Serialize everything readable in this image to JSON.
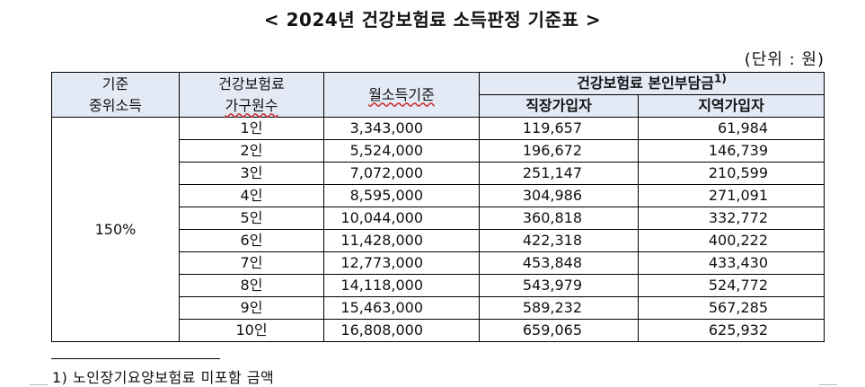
{
  "title": "< 2024년 건강보험료 소득판정 기준표 >",
  "unit": "(단위 : 원)",
  "headers": {
    "median_income_line1": "기준",
    "median_income_line2": "중위소득",
    "household_line1": "건강보험료",
    "household_line2": "가구원수",
    "monthly_income": "월소득기준",
    "premium_group": "건강보험료 본인부담금",
    "premium_group_sup": "1)",
    "employee": "직장가입자",
    "regional": "지역가입자"
  },
  "group_label": "150%",
  "rows": [
    {
      "persons": "1인",
      "monthly": "3,343,000",
      "employee": "119,657",
      "regional": "61,984"
    },
    {
      "persons": "2인",
      "monthly": "5,524,000",
      "employee": "196,672",
      "regional": "146,739"
    },
    {
      "persons": "3인",
      "monthly": "7,072,000",
      "employee": "251,147",
      "regional": "210,599"
    },
    {
      "persons": "4인",
      "monthly": "8,595,000",
      "employee": "304,986",
      "regional": "271,091"
    },
    {
      "persons": "5인",
      "monthly": "10,044,000",
      "employee": "360,818",
      "regional": "332,772"
    },
    {
      "persons": "6인",
      "monthly": "11,428,000",
      "employee": "422,318",
      "regional": "400,222"
    },
    {
      "persons": "7인",
      "monthly": "12,773,000",
      "employee": "453,848",
      "regional": "433,430"
    },
    {
      "persons": "8인",
      "monthly": "14,118,000",
      "employee": "543,979",
      "regional": "524,772"
    },
    {
      "persons": "9인",
      "monthly": "15,463,000",
      "employee": "589,232",
      "regional": "567,285"
    },
    {
      "persons": "10인",
      "monthly": "16,808,000",
      "employee": "659,065",
      "regional": "625,932"
    }
  ],
  "footnote": "1) 노인장기요양보험료 미포함 금액"
}
